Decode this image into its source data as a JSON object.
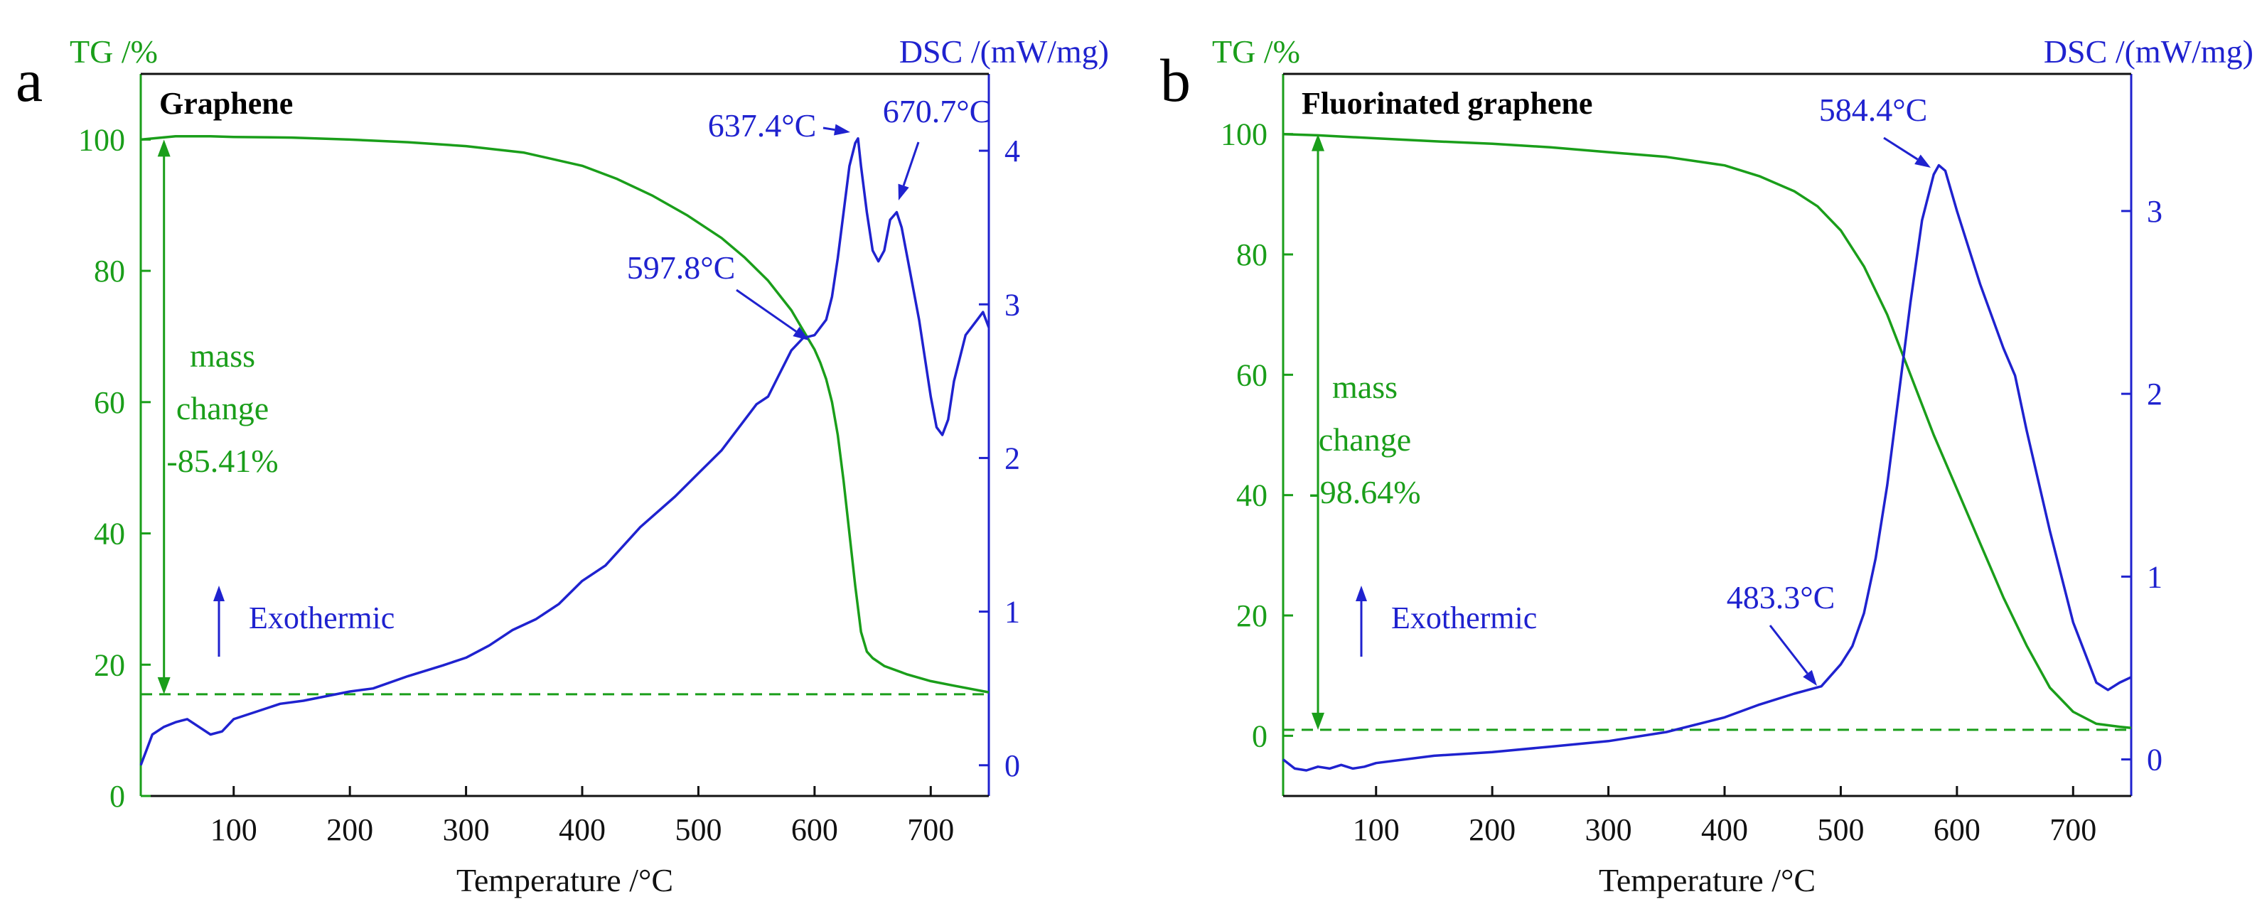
{
  "colors": {
    "tg": "#1a9e1a",
    "dsc": "#1f22cf",
    "axis_left": "#1a9e1a",
    "axis_right": "#1f22cf",
    "text": "#111111"
  },
  "xlabel": "Temperature /°C",
  "chart_data": [
    {
      "panel": "a",
      "type": "line",
      "title": "Graphene",
      "xlabel": "Temperature /°C",
      "ylabel_left": "TG /%",
      "ylabel_right": "DSC /(mW/mg)",
      "xlim": [
        20,
        750
      ],
      "xticks": [
        100,
        200,
        300,
        400,
        500,
        600,
        700
      ],
      "ylim_left": [
        0,
        110
      ],
      "yticks_left": [
        0,
        20,
        40,
        60,
        80,
        100
      ],
      "ylim_right": [
        -0.2,
        4.5
      ],
      "yticks_right": [
        0,
        1,
        2,
        3,
        4
      ],
      "residual_line_tg": 15.5,
      "mass_change": {
        "x": 40,
        "top": 100,
        "bottom": 15.5,
        "label": [
          "mass",
          "change",
          "-85.41%"
        ]
      },
      "exothermic": {
        "label": "Exothermic"
      },
      "series": [
        {
          "name": "TG",
          "axis": "left",
          "color": "#1a9e1a",
          "x": [
            20,
            50,
            80,
            100,
            150,
            200,
            250,
            300,
            350,
            400,
            430,
            460,
            490,
            520,
            540,
            560,
            580,
            590,
            600,
            605,
            610,
            615,
            620,
            625,
            630,
            635,
            640,
            645,
            650,
            660,
            680,
            700,
            720,
            750
          ],
          "y": [
            100,
            100.5,
            100.5,
            100.4,
            100.3,
            100,
            99.6,
            99,
            98,
            96,
            94,
            91.5,
            88.5,
            85,
            82,
            78.5,
            74,
            71,
            68,
            66,
            63.5,
            60,
            55,
            48,
            40,
            32,
            25,
            22,
            21,
            19.8,
            18.5,
            17.5,
            16.8,
            15.8
          ]
        },
        {
          "name": "DSC",
          "axis": "right",
          "color": "#1f22cf",
          "x": [
            20,
            25,
            30,
            40,
            50,
            60,
            70,
            80,
            90,
            100,
            120,
            140,
            160,
            180,
            200,
            220,
            250,
            280,
            300,
            320,
            340,
            360,
            380,
            400,
            420,
            450,
            480,
            500,
            520,
            540,
            550,
            560,
            570,
            580,
            590,
            600,
            610,
            615,
            620,
            625,
            630,
            635,
            637.4,
            640,
            645,
            650,
            655,
            660,
            665,
            670.7,
            675,
            680,
            690,
            700,
            705,
            710,
            715,
            720,
            730,
            740,
            745,
            750
          ],
          "y": [
            0,
            0.1,
            0.2,
            0.25,
            0.28,
            0.3,
            0.25,
            0.2,
            0.22,
            0.3,
            0.35,
            0.4,
            0.42,
            0.45,
            0.48,
            0.5,
            0.58,
            0.65,
            0.7,
            0.78,
            0.88,
            0.95,
            1.05,
            1.2,
            1.3,
            1.55,
            1.75,
            1.9,
            2.05,
            2.25,
            2.35,
            2.4,
            2.55,
            2.7,
            2.78,
            2.8,
            2.9,
            3.05,
            3.3,
            3.6,
            3.9,
            4.05,
            4.08,
            3.9,
            3.6,
            3.35,
            3.28,
            3.35,
            3.55,
            3.6,
            3.5,
            3.3,
            2.9,
            2.4,
            2.2,
            2.15,
            2.25,
            2.5,
            2.8,
            2.9,
            2.95,
            2.85
          ]
        }
      ],
      "annotations": [
        {
          "text": "637.4°C",
          "x": 637.4,
          "y": 4.08,
          "axis": "right"
        },
        {
          "text": "670.7°C",
          "x": 670.7,
          "y": 3.6,
          "axis": "right"
        },
        {
          "text": "597.8°C",
          "x": 597.8,
          "y": 2.8,
          "axis": "right"
        }
      ]
    },
    {
      "panel": "b",
      "type": "line",
      "title": "Fluorinated graphene",
      "xlabel": "Temperature /°C",
      "ylabel_left": "TG /%",
      "ylabel_right": "DSC /(mW/mg)",
      "xlim": [
        20,
        750
      ],
      "xticks": [
        100,
        200,
        300,
        400,
        500,
        600,
        700
      ],
      "ylim_left": [
        -10,
        110
      ],
      "yticks_left": [
        0,
        20,
        40,
        60,
        80,
        100
      ],
      "ylim_right": [
        -0.2,
        3.75
      ],
      "yticks_right": [
        0,
        1,
        2,
        3
      ],
      "residual_line_tg": 1,
      "mass_change": {
        "x": 50,
        "top": 100,
        "bottom": 1,
        "label": [
          "mass",
          "change",
          "-98.64%"
        ]
      },
      "exothermic": {
        "label": "Exothermic"
      },
      "series": [
        {
          "name": "TG",
          "axis": "left",
          "color": "#1a9e1a",
          "x": [
            20,
            50,
            100,
            150,
            200,
            250,
            300,
            350,
            400,
            430,
            460,
            480,
            500,
            520,
            540,
            560,
            580,
            600,
            620,
            640,
            660,
            680,
            700,
            720,
            740,
            750
          ],
          "y": [
            100,
            99.8,
            99.3,
            98.8,
            98.4,
            97.8,
            97,
            96.2,
            94.8,
            93,
            90.5,
            88,
            84,
            78,
            70,
            60,
            50,
            41,
            32,
            23,
            15,
            8,
            4,
            2,
            1.5,
            1.3
          ]
        },
        {
          "name": "DSC",
          "axis": "right",
          "color": "#1f22cf",
          "x": [
            20,
            30,
            40,
            50,
            60,
            70,
            80,
            90,
            100,
            150,
            200,
            250,
            300,
            350,
            400,
            430,
            460,
            483.3,
            500,
            510,
            520,
            530,
            540,
            550,
            560,
            570,
            580,
            584.4,
            590,
            600,
            620,
            640,
            650,
            660,
            680,
            700,
            720,
            730,
            740,
            750
          ],
          "y": [
            0,
            -0.05,
            -0.06,
            -0.04,
            -0.05,
            -0.03,
            -0.05,
            -0.04,
            -0.02,
            0.02,
            0.04,
            0.07,
            0.1,
            0.15,
            0.23,
            0.3,
            0.36,
            0.4,
            0.52,
            0.62,
            0.8,
            1.1,
            1.5,
            2.0,
            2.5,
            2.95,
            3.2,
            3.25,
            3.22,
            3.0,
            2.6,
            2.25,
            2.1,
            1.8,
            1.25,
            0.75,
            0.42,
            0.38,
            0.42,
            0.45
          ]
        }
      ],
      "annotations": [
        {
          "text": "584.4°C",
          "x": 584.4,
          "y": 3.25,
          "axis": "right"
        },
        {
          "text": "483.3°C",
          "x": 483.3,
          "y": 0.4,
          "axis": "right"
        }
      ]
    }
  ]
}
